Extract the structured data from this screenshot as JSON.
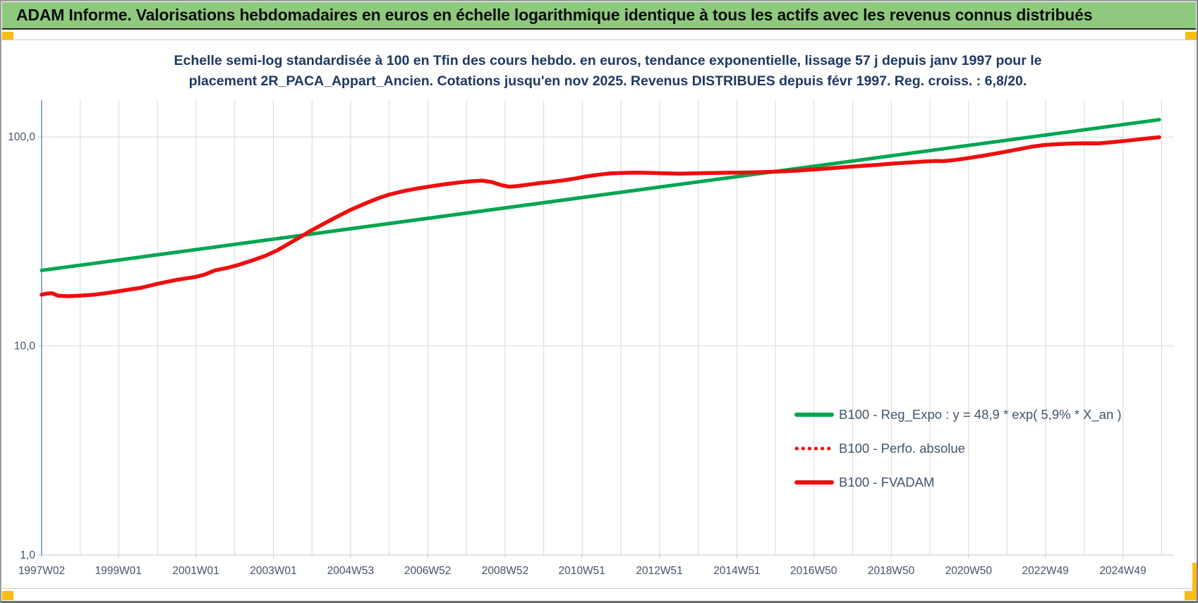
{
  "banner": {
    "title": "ADAM Informe. Valorisations hebdomadaires en euros en échelle logarithmique identique à tous les actifs avec les revenus connus distribués"
  },
  "colors": {
    "banner_green": "#8fc97d",
    "line_green": "#00a651",
    "line_red": "#ee0e0e",
    "title_navy": "#1f3864",
    "axis_label_slate": "#44546a",
    "gridline_gray": "#d9d9d9",
    "axis_blue": "#4472c4",
    "accent_orange": "#f9be14"
  },
  "chart_data": {
    "type": "line",
    "title_line1": "Echelle semi-log standardisée à 100 en Tfin des cours hebdo. en euros, tendance exponentielle, lissage 57 j depuis janv 1997 pour le",
    "title_line2": "placement 2R_PACA_Appart_Ancien. Cotations jusqu'en nov 2025. Revenus DISTRIBUES depuis févr 1997. Reg. croiss. : 6,8/20.",
    "y_axis": {
      "scale": "log",
      "range": [
        1,
        150
      ],
      "ticks": [
        {
          "value": 100,
          "label": "100,0"
        },
        {
          "value": 10,
          "label": "10,0"
        },
        {
          "value": 1,
          "label": "1,0"
        }
      ]
    },
    "x_axis": {
      "range": [
        1997.03,
        2026.25
      ],
      "gridline_step_years": 0.9966,
      "ticks": [
        {
          "label": "1997W02",
          "year": 1997.03
        },
        {
          "label": "1999W01",
          "year": 1999.01
        },
        {
          "label": "2001W01",
          "year": 2001.01
        },
        {
          "label": "2003W01",
          "year": 2003.01
        },
        {
          "label": "2004W53",
          "year": 2005.0
        },
        {
          "label": "2006W52",
          "year": 2006.99
        },
        {
          "label": "2008W52",
          "year": 2008.99
        },
        {
          "label": "2010W51",
          "year": 2010.97
        },
        {
          "label": "2012W51",
          "year": 2012.97
        },
        {
          "label": "2014W51",
          "year": 2014.97
        },
        {
          "label": "2016W50",
          "year": 2016.95
        },
        {
          "label": "2018W50",
          "year": 2018.95
        },
        {
          "label": "2020W50",
          "year": 2020.95
        },
        {
          "label": "2022W49",
          "year": 2022.93
        },
        {
          "label": "2024W49",
          "year": 2024.93
        }
      ]
    },
    "series": [
      {
        "name": "B100 - Reg_Expo : y = 48,9 * exp( 5,9% * X_an )",
        "color": "#00a651",
        "style": "solid",
        "width": 5,
        "points": [
          [
            1997.03,
            23.0
          ],
          [
            2025.87,
            121.0
          ]
        ]
      },
      {
        "name": "B100 - Perfo. absolue",
        "color": "#ee0e0e",
        "style": "dotted",
        "width": 4.5,
        "coincides_with": "B100 - FVADAM"
      },
      {
        "name": "B100 - FVADAM",
        "color": "#ee0e0e",
        "style": "solid",
        "width": 5.5,
        "points": [
          [
            1997.03,
            17.6
          ],
          [
            1997.15,
            17.8
          ],
          [
            1997.3,
            17.9
          ],
          [
            1997.45,
            17.4
          ],
          [
            1997.7,
            17.3
          ],
          [
            1998.0,
            17.4
          ],
          [
            1998.4,
            17.6
          ],
          [
            1998.8,
            18.0
          ],
          [
            1999.2,
            18.5
          ],
          [
            1999.6,
            19.0
          ],
          [
            2000.0,
            19.8
          ],
          [
            2000.5,
            20.7
          ],
          [
            2001.0,
            21.4
          ],
          [
            2001.25,
            22.0
          ],
          [
            2001.5,
            23.0
          ],
          [
            2001.8,
            23.6
          ],
          [
            2002.1,
            24.4
          ],
          [
            2002.5,
            25.8
          ],
          [
            2002.8,
            27.0
          ],
          [
            2003.1,
            28.6
          ],
          [
            2003.4,
            30.8
          ],
          [
            2003.7,
            33.2
          ],
          [
            2004.0,
            35.8
          ],
          [
            2004.35,
            38.8
          ],
          [
            2004.7,
            42.0
          ],
          [
            2005.0,
            44.8
          ],
          [
            2005.35,
            47.8
          ],
          [
            2005.7,
            50.8
          ],
          [
            2006.0,
            53.0
          ],
          [
            2006.35,
            55.0
          ],
          [
            2006.7,
            56.6
          ],
          [
            2007.0,
            57.8
          ],
          [
            2007.4,
            59.3
          ],
          [
            2007.8,
            60.6
          ],
          [
            2008.1,
            61.4
          ],
          [
            2008.4,
            61.8
          ],
          [
            2008.65,
            60.8
          ],
          [
            2008.9,
            58.8
          ],
          [
            2009.1,
            57.8
          ],
          [
            2009.3,
            58.2
          ],
          [
            2009.6,
            59.2
          ],
          [
            2009.9,
            60.2
          ],
          [
            2010.2,
            61.0
          ],
          [
            2010.5,
            62.0
          ],
          [
            2010.8,
            63.3
          ],
          [
            2011.1,
            64.8
          ],
          [
            2011.4,
            66.0
          ],
          [
            2011.7,
            66.9
          ],
          [
            2012.0,
            67.3
          ],
          [
            2012.4,
            67.5
          ],
          [
            2012.8,
            67.3
          ],
          [
            2013.2,
            66.9
          ],
          [
            2013.5,
            66.7
          ],
          [
            2013.8,
            66.9
          ],
          [
            2014.2,
            67.2
          ],
          [
            2014.6,
            67.4
          ],
          [
            2015.0,
            67.5
          ],
          [
            2015.4,
            67.7
          ],
          [
            2015.8,
            68.0
          ],
          [
            2016.2,
            68.5
          ],
          [
            2016.6,
            69.2
          ],
          [
            2017.0,
            70.0
          ],
          [
            2017.4,
            70.9
          ],
          [
            2017.8,
            71.8
          ],
          [
            2018.2,
            72.7
          ],
          [
            2018.6,
            73.6
          ],
          [
            2019.0,
            74.6
          ],
          [
            2019.4,
            75.4
          ],
          [
            2019.8,
            76.3
          ],
          [
            2020.1,
            76.8
          ],
          [
            2020.3,
            76.6
          ],
          [
            2020.6,
            77.6
          ],
          [
            2021.0,
            79.5
          ],
          [
            2021.4,
            81.8
          ],
          [
            2021.8,
            84.3
          ],
          [
            2022.2,
            87.0
          ],
          [
            2022.6,
            90.0
          ],
          [
            2022.9,
            91.5
          ],
          [
            2023.2,
            92.3
          ],
          [
            2023.6,
            93.0
          ],
          [
            2024.0,
            93.3
          ],
          [
            2024.3,
            93.2
          ],
          [
            2024.6,
            94.2
          ],
          [
            2025.0,
            95.8
          ],
          [
            2025.4,
            97.6
          ],
          [
            2025.7,
            99.0
          ],
          [
            2025.87,
            99.7
          ]
        ]
      }
    ],
    "legend": {
      "position": "middle-right",
      "entries": [
        "B100 - Reg_Expo : y = 48,9 * exp( 5,9% * X_an )",
        "B100 - Perfo. absolue",
        "B100 - FVADAM"
      ]
    }
  }
}
